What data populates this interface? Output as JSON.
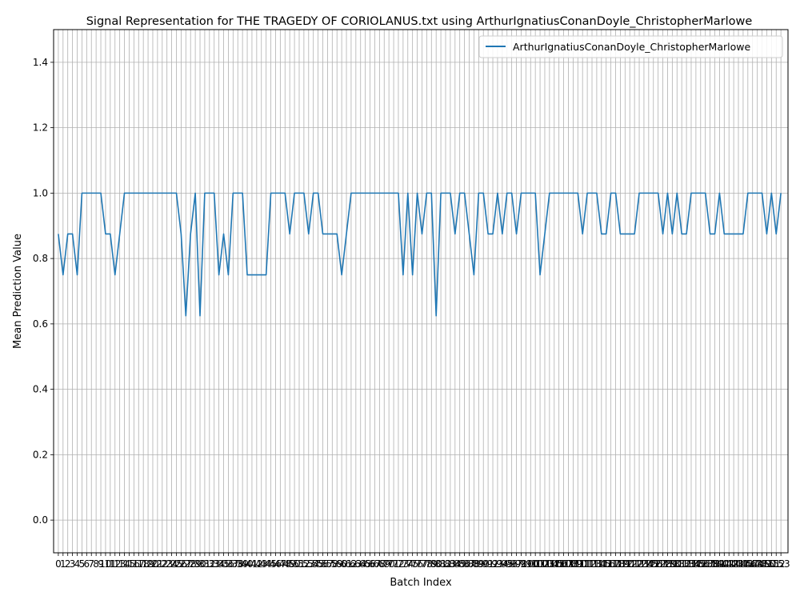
{
  "chart_data": {
    "type": "line",
    "title": "Signal Representation for THE TRAGEDY OF CORIOLANUS.txt using ArthurIgnatiusConanDoyle_ChristopherMarlowe",
    "xlabel": "Batch Index",
    "ylabel": "Mean Prediction Value",
    "ylim": [
      -0.1,
      1.5
    ],
    "xlim": [
      -1,
      154.5
    ],
    "y_ticks": [
      0.0,
      0.2,
      0.4,
      0.6,
      0.8,
      1.0,
      1.2,
      1.4
    ],
    "x_ticks_first": 0,
    "x_ticks_last": 153,
    "x_ticks_step": 1,
    "grid": true,
    "legend_position": "upper right",
    "line_color": "#1f77b4",
    "series": [
      {
        "name": "ArthurIgnatiusConanDoyle_ChristopherMarlowe",
        "values": [
          0.875,
          0.75,
          0.875,
          0.875,
          0.75,
          1,
          1,
          1,
          1,
          1,
          0.875,
          0.875,
          0.75,
          0.875,
          1,
          1,
          1,
          1,
          1,
          1,
          1,
          1,
          1,
          1,
          1,
          1,
          0.875,
          0.625,
          0.875,
          1,
          0.625,
          1,
          1,
          1,
          0.75,
          0.875,
          0.75,
          1,
          1,
          1,
          0.75,
          0.75,
          0.75,
          0.75,
          0.75,
          1,
          1,
          1,
          1,
          0.875,
          1,
          1,
          1,
          0.875,
          1,
          1,
          0.875,
          0.875,
          0.875,
          0.875,
          0.75,
          0.875,
          1,
          1,
          1,
          1,
          1,
          1,
          1,
          1,
          1,
          1,
          1,
          0.75,
          1,
          0.75,
          1,
          0.875,
          1,
          1,
          0.625,
          1,
          1,
          1,
          0.875,
          1,
          1,
          0.875,
          0.75,
          1,
          1,
          0.875,
          0.875,
          1,
          0.875,
          1,
          1,
          0.875,
          1,
          1,
          1,
          1,
          0.75,
          0.875,
          1,
          1,
          1,
          1,
          1,
          1,
          1,
          0.875,
          1,
          1,
          1,
          0.875,
          0.875,
          1,
          1,
          0.875,
          0.875,
          0.875,
          0.875,
          1,
          1,
          1,
          1,
          1,
          0.875,
          1,
          0.875,
          1,
          0.875,
          0.875,
          1,
          1,
          1,
          1,
          0.875,
          0.875,
          1,
          0.875,
          0.875,
          0.875,
          0.875,
          0.875,
          1,
          1,
          1,
          1,
          0.875,
          1,
          0.875,
          1
        ]
      }
    ]
  }
}
